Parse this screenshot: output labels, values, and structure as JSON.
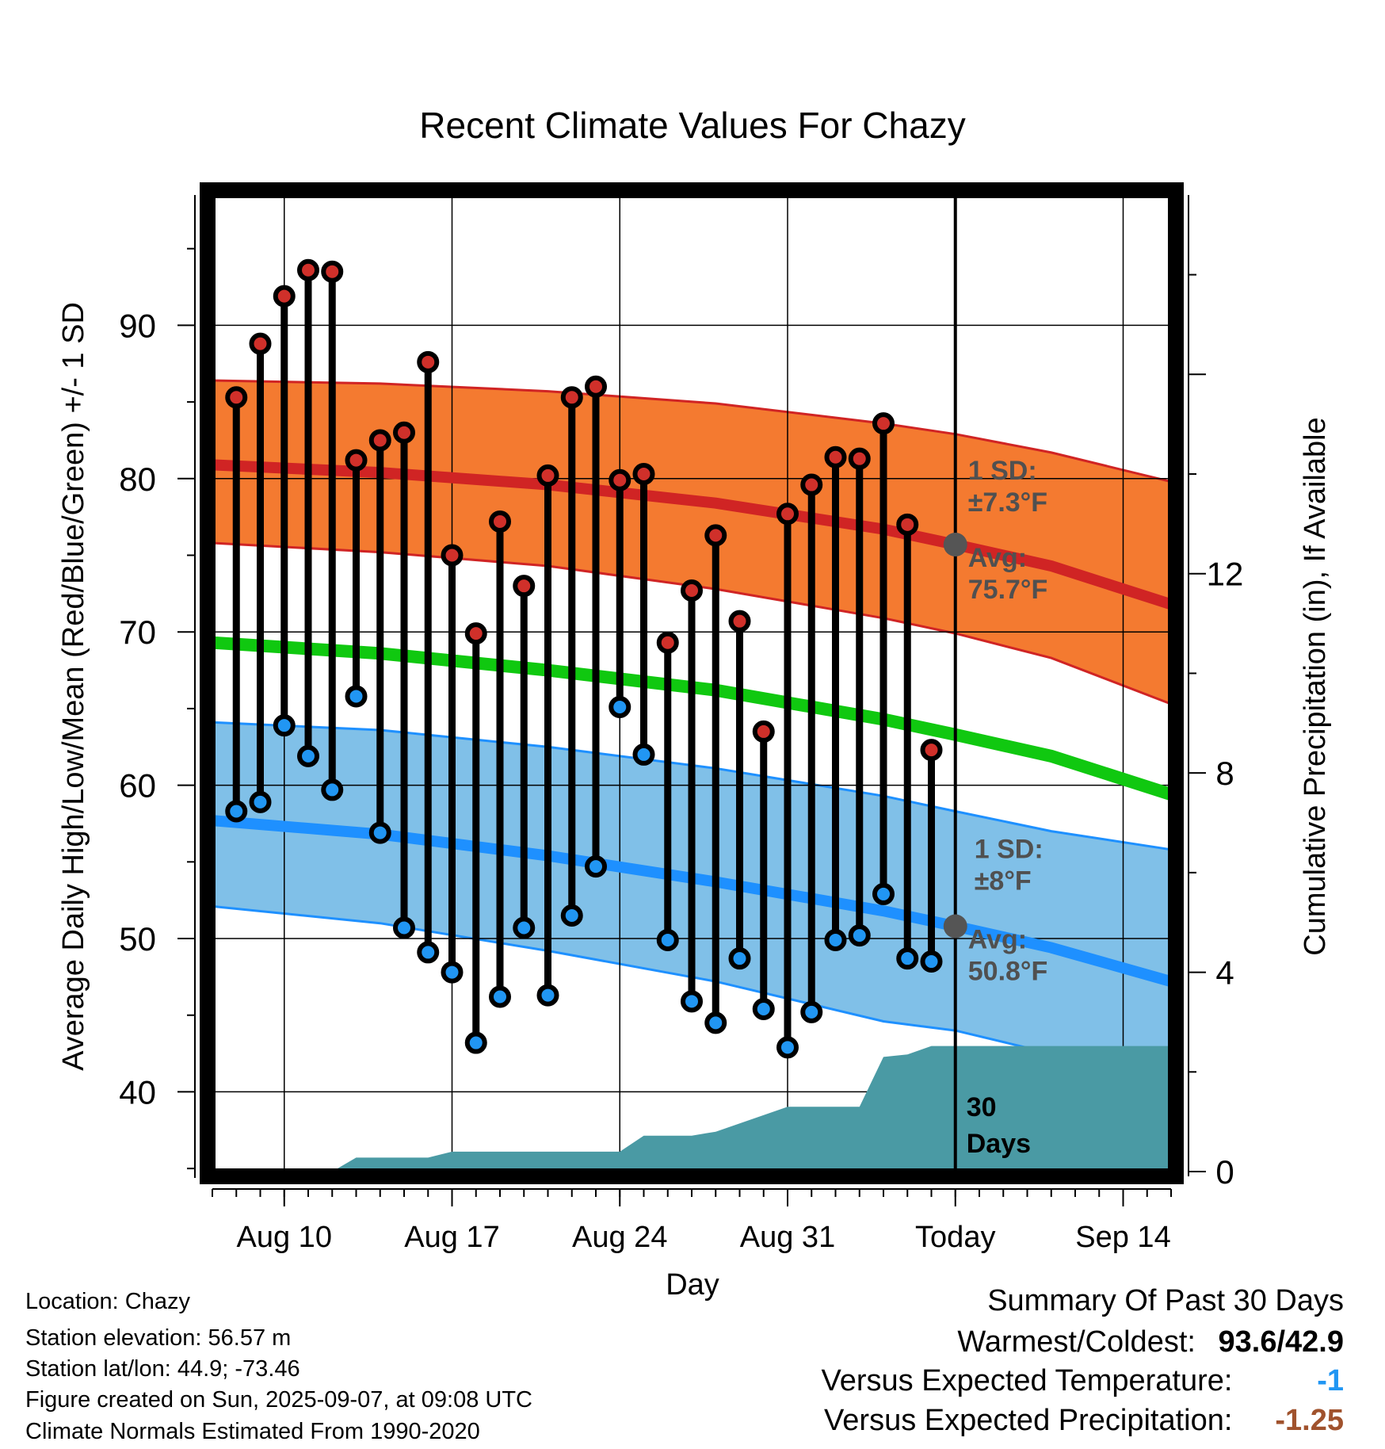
{
  "chart_data": {
    "type": "line",
    "title": "Recent Climate Values For Chazy",
    "xlabel": "Day",
    "ylabel": "Average Daily High/Low/Mean (Red/Blue/Green) +/- 1 SD",
    "y2label": "Cumulative Precipitation (in), If Available",
    "ylim": [
      34.8,
      98.5
    ],
    "y_ticks": [
      40,
      50,
      60,
      70,
      80,
      90
    ],
    "y2lim": [
      0,
      19.6
    ],
    "y2_ticks": [
      0,
      4,
      8,
      12
    ],
    "xlim": [
      "Aug 07",
      "Sep 16"
    ],
    "x_ticks": [
      {
        "date": "Aug 10",
        "label": "Aug 10"
      },
      {
        "date": "Aug 17",
        "label": "Aug 17"
      },
      {
        "date": "Aug 24",
        "label": "Aug 24"
      },
      {
        "date": "Aug 31",
        "label": "Aug 31"
      },
      {
        "date": "Sep 07",
        "label": "Today"
      },
      {
        "date": "Sep 14",
        "label": "Sep 14"
      }
    ],
    "grid": true,
    "today": "Sep 07",
    "observed": {
      "dates": [
        "Aug 08",
        "Aug 09",
        "Aug 10",
        "Aug 11",
        "Aug 12",
        "Aug 13",
        "Aug 14",
        "Aug 15",
        "Aug 16",
        "Aug 17",
        "Aug 18",
        "Aug 19",
        "Aug 20",
        "Aug 21",
        "Aug 22",
        "Aug 23",
        "Aug 24",
        "Aug 25",
        "Aug 26",
        "Aug 27",
        "Aug 28",
        "Aug 29",
        "Aug 30",
        "Aug 31",
        "Sep 01",
        "Sep 02",
        "Sep 03",
        "Sep 04",
        "Sep 05",
        "Sep 06"
      ],
      "highs": [
        85.3,
        88.8,
        91.9,
        93.6,
        93.5,
        81.2,
        82.5,
        83.0,
        87.6,
        75.0,
        69.9,
        77.2,
        73.0,
        80.2,
        85.3,
        86.0,
        79.9,
        80.3,
        69.3,
        72.7,
        76.3,
        70.7,
        63.5,
        77.7,
        79.6,
        81.4,
        81.3,
        83.6,
        77.0,
        62.3
      ],
      "lows": [
        58.3,
        58.9,
        63.9,
        61.9,
        59.7,
        65.8,
        56.9,
        50.7,
        49.1,
        47.8,
        43.2,
        46.2,
        50.7,
        46.3,
        51.5,
        54.7,
        65.1,
        62.0,
        49.9,
        45.9,
        44.5,
        48.7,
        45.4,
        42.9,
        45.2,
        49.9,
        50.2,
        52.9,
        48.7,
        48.5
      ]
    },
    "normals": {
      "dates": [
        "Aug 07",
        "Aug 14",
        "Aug 21",
        "Aug 28",
        "Sep 04",
        "Sep 07",
        "Sep 11",
        "Sep 16"
      ],
      "high_mean": [
        80.9,
        80.4,
        79.6,
        78.4,
        76.7,
        75.7,
        74.3,
        71.8
      ],
      "high_upper": [
        86.4,
        86.2,
        85.7,
        84.9,
        83.6,
        82.9,
        81.7,
        79.8
      ],
      "high_lower": [
        75.8,
        75.2,
        74.3,
        72.8,
        70.9,
        69.9,
        68.3,
        65.3
      ],
      "mean": [
        69.3,
        68.6,
        67.5,
        66.2,
        64.3,
        63.3,
        61.9,
        59.4
      ],
      "low_mean": [
        57.7,
        56.8,
        55.4,
        53.7,
        51.8,
        50.8,
        49.4,
        47.2
      ],
      "low_upper": [
        64.1,
        63.6,
        62.5,
        61.1,
        59.3,
        58.3,
        57.0,
        55.8
      ],
      "low_lower": [
        52.1,
        51.0,
        49.2,
        47.2,
        44.6,
        44.0,
        42.5,
        40.3
      ]
    },
    "precip": {
      "dates": [
        "Aug 07",
        "Aug 12",
        "Aug 13",
        "Aug 16",
        "Aug 17",
        "Aug 24",
        "Aug 25",
        "Aug 27",
        "Aug 28",
        "Aug 31",
        "Sep 03",
        "Sep 04",
        "Sep 05",
        "Sep 06",
        "Sep 16"
      ],
      "values": [
        0,
        0,
        0.28,
        0.28,
        0.4,
        0.4,
        0.72,
        0.72,
        0.8,
        1.3,
        1.3,
        2.3,
        2.35,
        2.52,
        2.52
      ]
    },
    "annotations": {
      "high_sd_title": "1 SD:",
      "high_sd_value": "±7.3°F",
      "high_avg_title": "Avg:",
      "high_avg_value": "75.7°F",
      "high_avg": 75.7,
      "low_sd_title": "1 SD:",
      "low_sd_value": "±8°F",
      "low_avg_title": "Avg:",
      "low_avg_value": "50.8°F",
      "low_avg": 50.8,
      "days_line1": "30",
      "days_line2": "Days"
    },
    "colors": {
      "high_band": "#f47a30",
      "high_line": "#d02424",
      "high_dot": "#d0302a",
      "low_band": "#80c0e8",
      "low_line": "#1e90ff",
      "low_dot": "#2196f3",
      "mean_line": "#10c810",
      "precip": "#4a9aa4",
      "annot": "#505050"
    }
  },
  "footer": {
    "location": "Location: Chazy",
    "elevation": "Station elevation: 56.57 m",
    "latlon": "Station lat/lon: 44.9; -73.46",
    "created": "Figure created on Sun, 2025-09-07, at 09:08 UTC",
    "normals": "Climate Normals Estimated From 1990-2020"
  },
  "summary": {
    "title": "Summary Of Past 30 Days",
    "warm_cold_label": "Warmest/Coldest:",
    "warm_cold_value": "93.6/42.9",
    "temp_label": "Versus Expected Temperature:",
    "temp_value": "-1",
    "temp_color": "#2196f3",
    "precip_label": "Versus Expected Precipitation:",
    "precip_value": "-1.25",
    "precip_color": "#a0522d"
  }
}
